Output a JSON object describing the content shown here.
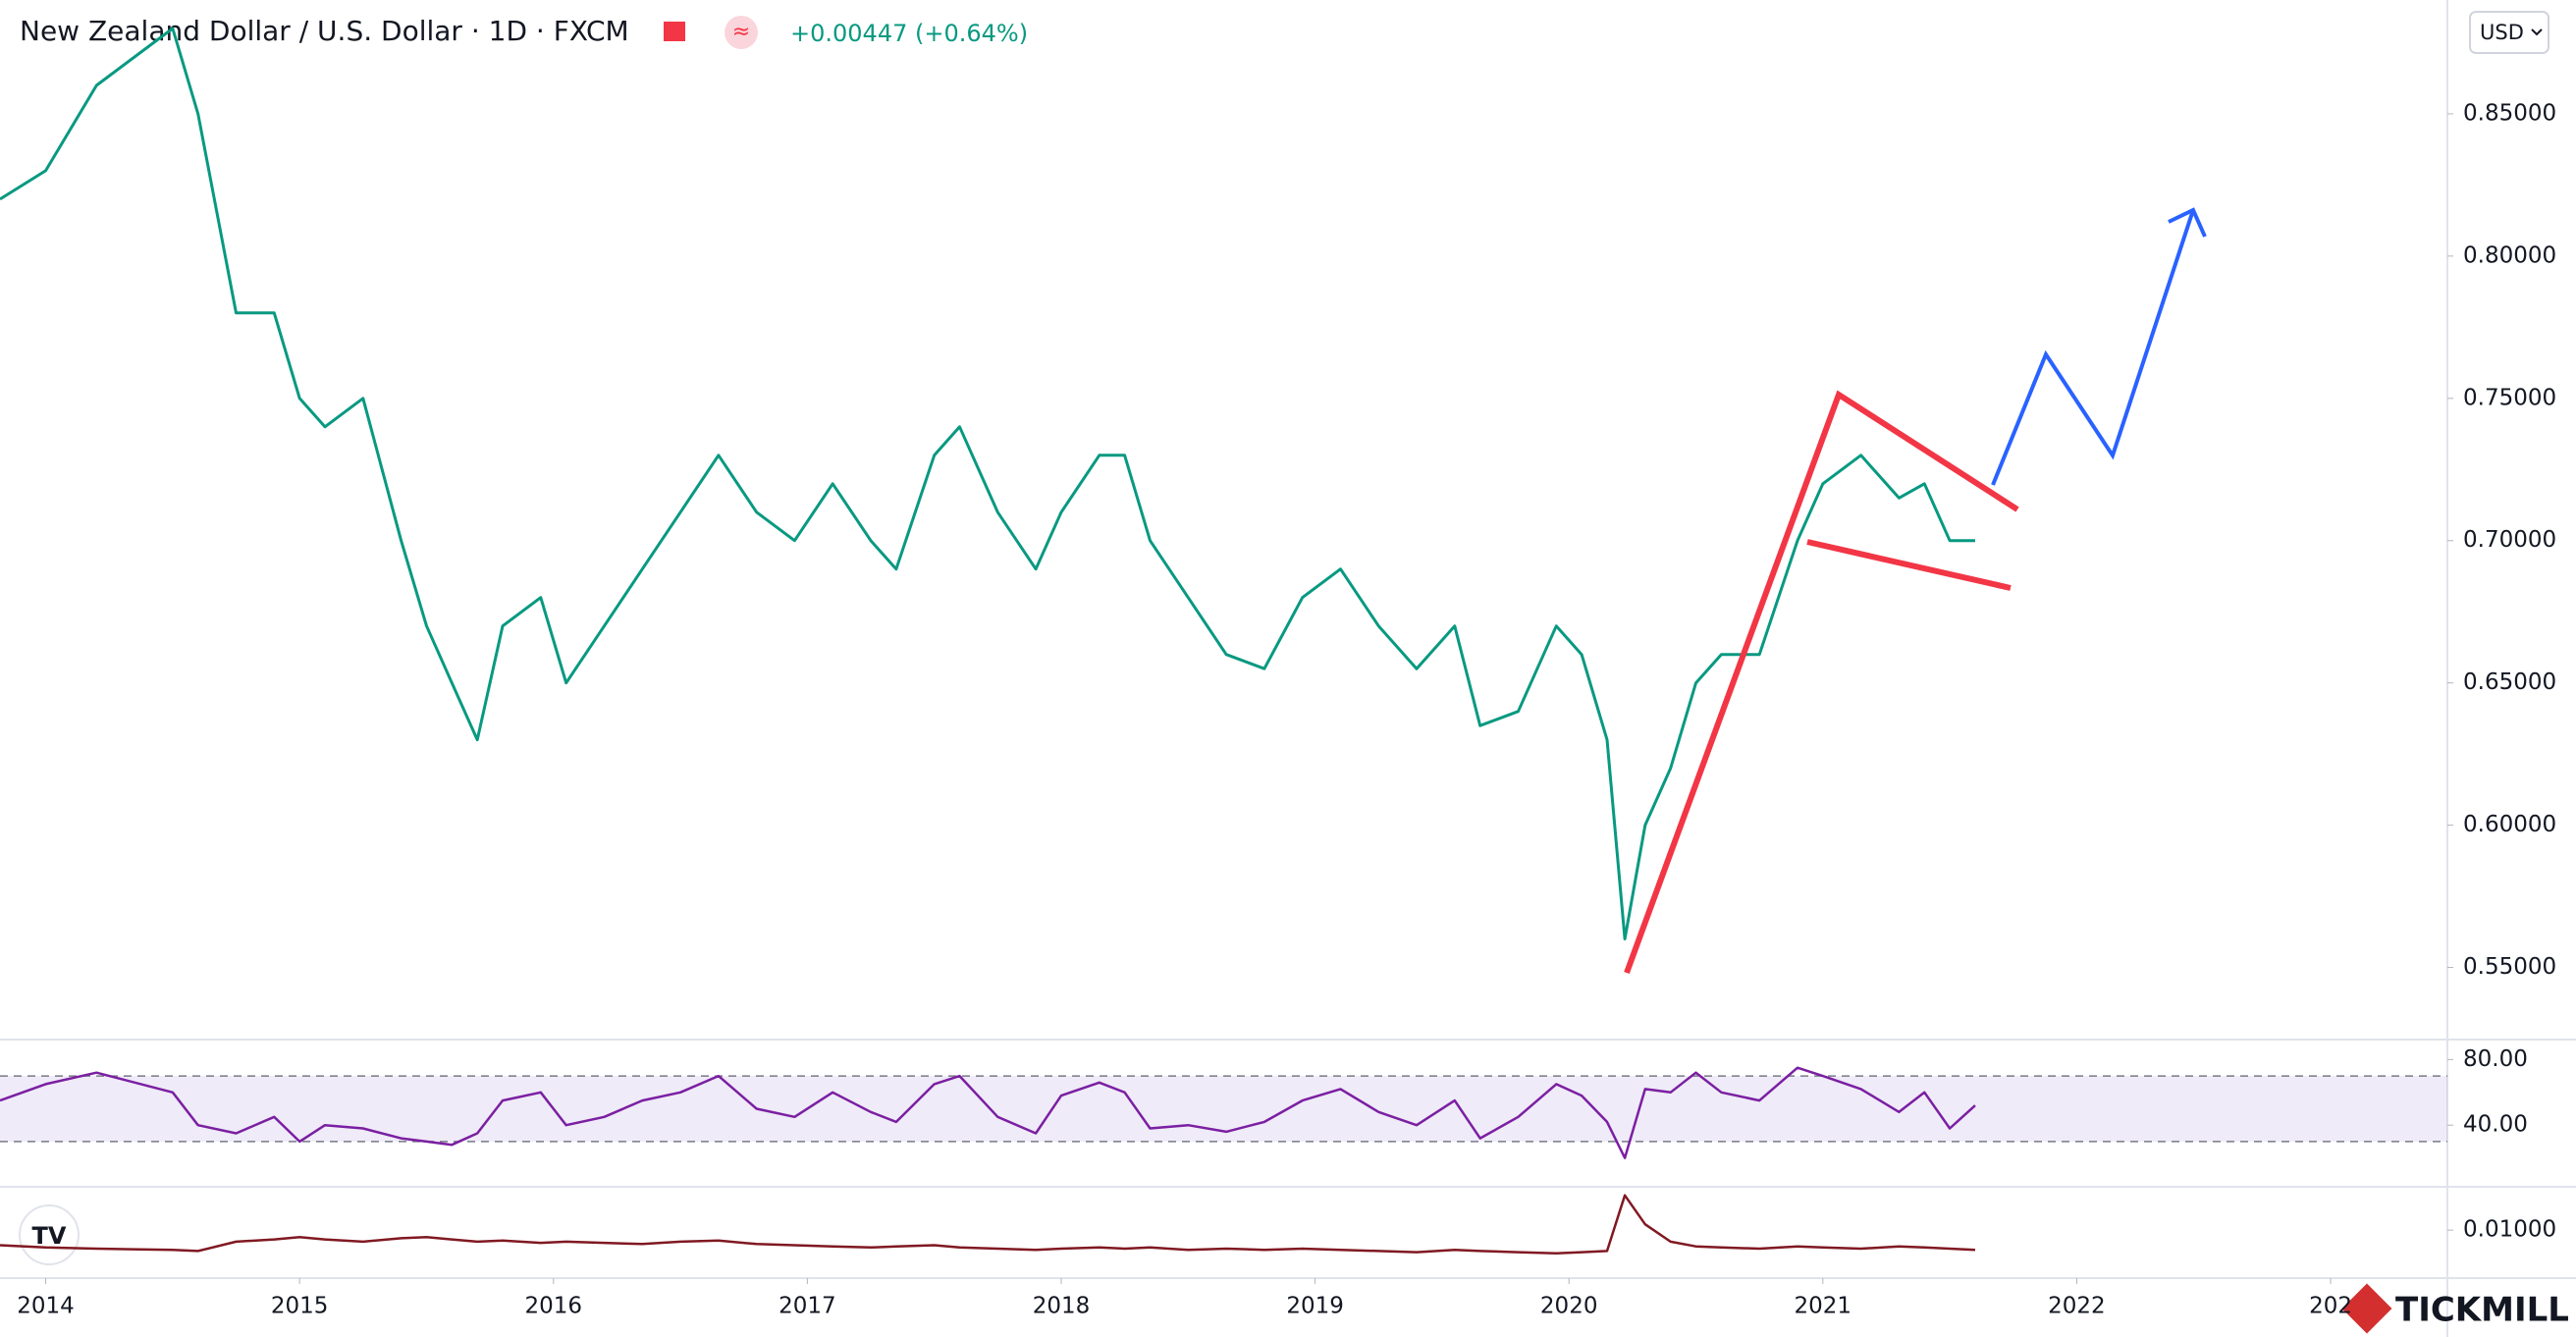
{
  "header": {
    "title": "New Zealand Dollar / U.S. Dollar · 1D · FXCM",
    "change": "+0.00447 (+0.64%)",
    "currency": "USD",
    "brand": "TICKMILL"
  },
  "chart_data": [
    {
      "type": "line",
      "color": "#089981",
      "x": [
        2013.82,
        2014.0,
        2014.2,
        2014.5,
        2014.6,
        2014.75,
        2014.9,
        2015.0,
        2015.1,
        2015.25,
        2015.4,
        2015.5,
        2015.6,
        2015.7,
        2015.8,
        2015.95,
        2016.05,
        2016.2,
        2016.35,
        2016.5,
        2016.65,
        2016.8,
        2016.95,
        2017.1,
        2017.25,
        2017.35,
        2017.5,
        2017.6,
        2017.75,
        2017.9,
        2018.0,
        2018.15,
        2018.25,
        2018.35,
        2018.5,
        2018.65,
        2018.8,
        2018.95,
        2019.1,
        2019.25,
        2019.4,
        2019.55,
        2019.65,
        2019.8,
        2019.95,
        2020.05,
        2020.15,
        2020.22,
        2020.3,
        2020.4,
        2020.5,
        2020.6,
        2020.75,
        2020.9,
        2021.0,
        2021.15,
        2021.3,
        2021.4,
        2021.5,
        2021.6
      ],
      "values": [
        0.82,
        0.83,
        0.86,
        0.88,
        0.85,
        0.78,
        0.78,
        0.75,
        0.74,
        0.75,
        0.7,
        0.67,
        0.65,
        0.63,
        0.67,
        0.68,
        0.65,
        0.67,
        0.69,
        0.71,
        0.73,
        0.71,
        0.7,
        0.72,
        0.7,
        0.69,
        0.73,
        0.74,
        0.71,
        0.69,
        0.71,
        0.73,
        0.73,
        0.7,
        0.68,
        0.66,
        0.655,
        0.68,
        0.69,
        0.67,
        0.655,
        0.67,
        0.635,
        0.64,
        0.67,
        0.66,
        0.63,
        0.56,
        0.6,
        0.62,
        0.65,
        0.66,
        0.66,
        0.7,
        0.72,
        0.73,
        0.715,
        0.72,
        0.7,
        0.7
      ],
      "xlim": [
        2013.82,
        2023.46
      ],
      "xticks": [
        2014,
        2015,
        2016,
        2017,
        2018,
        2019,
        2020,
        2021,
        2022,
        {
          "value": 2023,
          "label": "202"
        }
      ],
      "ylim": [
        0.525,
        0.89
      ],
      "yticks": [
        {
          "value": 0.55,
          "label": "0.55000"
        },
        {
          "value": 0.6,
          "label": "0.60000"
        },
        {
          "value": 0.65,
          "label": "0.65000"
        },
        {
          "value": 0.7,
          "label": "0.70000"
        },
        {
          "value": 0.75,
          "label": "0.75000"
        },
        {
          "value": 0.8,
          "label": "0.80000"
        },
        {
          "value": 0.85,
          "label": "0.85000"
        }
      ],
      "grid": false
    },
    {
      "type": "line",
      "color": "#7b1fa2",
      "band": [
        30,
        70
      ],
      "band_color": "#7e57c2",
      "x": [
        2013.82,
        2014.0,
        2014.2,
        2014.5,
        2014.6,
        2014.75,
        2014.9,
        2015.0,
        2015.1,
        2015.25,
        2015.4,
        2015.5,
        2015.6,
        2015.7,
        2015.8,
        2015.95,
        2016.05,
        2016.2,
        2016.35,
        2016.5,
        2016.65,
        2016.8,
        2016.95,
        2017.1,
        2017.25,
        2017.35,
        2017.5,
        2017.6,
        2017.75,
        2017.9,
        2018.0,
        2018.15,
        2018.25,
        2018.35,
        2018.5,
        2018.65,
        2018.8,
        2018.95,
        2019.1,
        2019.25,
        2019.4,
        2019.55,
        2019.65,
        2019.8,
        2019.95,
        2020.05,
        2020.15,
        2020.22,
        2020.3,
        2020.4,
        2020.5,
        2020.6,
        2020.75,
        2020.9,
        2021.0,
        2021.15,
        2021.3,
        2021.4,
        2021.5,
        2021.6
      ],
      "values": [
        55,
        65,
        72,
        60,
        40,
        35,
        45,
        30,
        40,
        38,
        32,
        30,
        28,
        35,
        55,
        60,
        40,
        45,
        55,
        60,
        70,
        50,
        45,
        60,
        48,
        42,
        65,
        70,
        45,
        35,
        58,
        66,
        60,
        38,
        40,
        36,
        42,
        55,
        62,
        48,
        40,
        55,
        32,
        45,
        65,
        58,
        42,
        20,
        62,
        60,
        72,
        60,
        55,
        75,
        70,
        62,
        48,
        60,
        38,
        52
      ],
      "ylim": [
        3,
        91
      ],
      "yticks": [
        {
          "value": 40,
          "label": "40.00"
        },
        {
          "value": 80,
          "label": "80.00"
        }
      ]
    },
    {
      "type": "line",
      "color": "#801922",
      "x": [
        2013.82,
        2014.0,
        2014.2,
        2014.5,
        2014.6,
        2014.75,
        2014.9,
        2015.0,
        2015.1,
        2015.25,
        2015.4,
        2015.5,
        2015.6,
        2015.7,
        2015.8,
        2015.95,
        2016.05,
        2016.2,
        2016.35,
        2016.5,
        2016.65,
        2016.8,
        2016.95,
        2017.1,
        2017.25,
        2017.35,
        2017.5,
        2017.6,
        2017.75,
        2017.9,
        2018.0,
        2018.15,
        2018.25,
        2018.35,
        2018.5,
        2018.65,
        2018.8,
        2018.95,
        2019.1,
        2019.25,
        2019.4,
        2019.55,
        2019.65,
        2019.8,
        2019.95,
        2020.05,
        2020.15,
        2020.22,
        2020.3,
        2020.4,
        2020.5,
        2020.6,
        2020.75,
        2020.9,
        2021.0,
        2021.15,
        2021.3,
        2021.4,
        2021.5,
        2021.6
      ],
      "values": [
        0.0087,
        0.0085,
        0.0084,
        0.0083,
        0.0082,
        0.009,
        0.0092,
        0.0094,
        0.0092,
        0.009,
        0.0093,
        0.0094,
        0.0092,
        0.009,
        0.0091,
        0.0089,
        0.009,
        0.0089,
        0.0088,
        0.009,
        0.0091,
        0.0088,
        0.0087,
        0.0086,
        0.0085,
        0.0086,
        0.0087,
        0.0085,
        0.0084,
        0.0083,
        0.0084,
        0.0085,
        0.0084,
        0.0085,
        0.0083,
        0.0084,
        0.0083,
        0.0084,
        0.0083,
        0.0082,
        0.0081,
        0.0083,
        0.0082,
        0.0081,
        0.008,
        0.0081,
        0.0082,
        0.013,
        0.0105,
        0.009,
        0.0086,
        0.0085,
        0.0084,
        0.0086,
        0.0085,
        0.0084,
        0.0086,
        0.0085,
        0.0084,
        0.0083
      ],
      "ylim": [
        0.00586,
        0.01357
      ],
      "yticks": [
        {
          "value": 0.01,
          "label": "0.01000"
        }
      ]
    }
  ]
}
